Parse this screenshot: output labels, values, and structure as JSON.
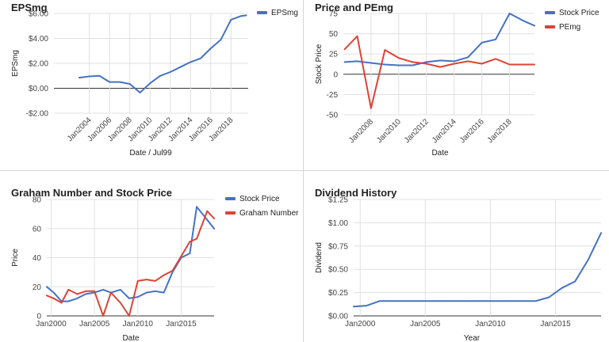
{
  "colors": {
    "blue": "#4472c4",
    "red": "#db4437",
    "grid": "#e0e0e0",
    "zero": "#333333"
  },
  "chart_data": [
    {
      "type": "line",
      "title": "EPSmg",
      "xlabel": "Date / Jul99",
      "ylabel": "EPSmg",
      "xlim": [
        2000.5,
        2019.7
      ],
      "ylim": [
        -2,
        6
      ],
      "y_ticks": [
        -2,
        0,
        2,
        4,
        6
      ],
      "y_tick_labels": [
        "-$2.00",
        "$0.00",
        "$2.00",
        "$4.00",
        "$6.00"
      ],
      "x_ticks": [
        2004,
        2006,
        2008,
        2010,
        2012,
        2014,
        2016,
        2018
      ],
      "x_tick_labels": [
        "Jan2004",
        "Jan2006",
        "Jan2008",
        "Jan2010",
        "Jan2012",
        "Jan2014",
        "Jan2016",
        "Jan2018"
      ],
      "x_tick_rotate": -45,
      "legend": "top-right",
      "series": [
        {
          "name": "EPSmg",
          "color": "#4472c4",
          "x": [
            2003.0,
            2004.0,
            2005.0,
            2006.0,
            2007.0,
            2008.0,
            2009.0,
            2010.0,
            2011.0,
            2012.0,
            2013.0,
            2014.0,
            2015.0,
            2016.0,
            2017.0,
            2018.0,
            2019.0,
            2019.5
          ],
          "y": [
            0.85,
            0.95,
            1.0,
            0.5,
            0.5,
            0.35,
            -0.35,
            0.4,
            1.0,
            1.3,
            1.7,
            2.1,
            2.4,
            3.2,
            3.9,
            5.5,
            5.8,
            5.85
          ]
        }
      ]
    },
    {
      "type": "line",
      "title": "Price and PEmg",
      "xlabel": "Date",
      "ylabel": "Stock Price",
      "xlim": [
        2006.0,
        2019.8
      ],
      "ylim": [
        -50,
        75
      ],
      "y_ticks": [
        -50,
        -25,
        0,
        25,
        50,
        75
      ],
      "y_tick_labels": [
        "-50",
        "-25",
        "0",
        "25",
        "50",
        "75"
      ],
      "x_ticks": [
        2008,
        2010,
        2012,
        2014,
        2016,
        2018
      ],
      "x_tick_labels": [
        "Jan2008",
        "Jan2010",
        "Jan2012",
        "Jan2014",
        "Jan2016",
        "Jan2018"
      ],
      "x_tick_rotate": -45,
      "legend": "top-right",
      "series": [
        {
          "name": "Stock Price",
          "color": "#4472c4",
          "x": [
            2006.1,
            2007.0,
            2008.0,
            2009.0,
            2010.0,
            2011.0,
            2012.0,
            2013.0,
            2014.0,
            2015.0,
            2016.0,
            2017.0,
            2018.0,
            2019.0,
            2019.8
          ],
          "y": [
            15,
            16,
            14,
            12,
            11,
            11,
            15,
            17,
            16,
            21,
            39,
            43,
            75,
            66,
            60
          ]
        },
        {
          "name": "PEmg",
          "color": "#db4437",
          "x": [
            2006.1,
            2007.0,
            2008.0,
            2009.0,
            2010.0,
            2011.0,
            2012.0,
            2013.0,
            2014.0,
            2015.0,
            2016.0,
            2017.0,
            2018.0,
            2019.0,
            2019.8
          ],
          "y": [
            31,
            47,
            -42,
            30,
            20,
            15,
            13,
            9,
            13,
            16,
            13,
            19,
            12,
            12,
            12
          ]
        }
      ]
    },
    {
      "type": "line",
      "title": "Graham Number and Stock Price",
      "xlabel": "Date",
      "ylabel": "Price",
      "xlim": [
        1999.5,
        2018.8
      ],
      "ylim": [
        0,
        80
      ],
      "y_ticks": [
        0,
        20,
        40,
        60,
        80
      ],
      "y_tick_labels": [
        "0",
        "20",
        "40",
        "60",
        "80"
      ],
      "x_ticks": [
        2000,
        2005,
        2010,
        2015
      ],
      "x_tick_labels": [
        "Jan2000",
        "Jan2005",
        "Jan2010",
        "Jan2015"
      ],
      "x_tick_rotate": 0,
      "legend": "top-right",
      "series": [
        {
          "name": "Stock Price",
          "color": "#4472c4",
          "x": [
            1999.5,
            2000.3,
            2001.2,
            2002.0,
            2003.0,
            2004.0,
            2005.0,
            2006.0,
            2006.9,
            2008.0,
            2009.0,
            2010.0,
            2011.0,
            2012.0,
            2013.0,
            2014.0,
            2015.0,
            2016.0,
            2016.8,
            2018.0,
            2018.8
          ],
          "y": [
            20,
            16,
            10,
            10,
            12,
            15,
            16,
            18,
            16,
            18,
            12,
            13,
            16,
            17,
            16,
            30,
            40,
            43,
            75,
            66,
            60
          ]
        },
        {
          "name": "Graham Number",
          "color": "#db4437",
          "x": [
            1999.5,
            2000.3,
            2001.2,
            2002.0,
            2003.0,
            2004.0,
            2005.0,
            2006.0,
            2006.9,
            2008.0,
            2009.0,
            2010.0,
            2011.0,
            2012.0,
            2013.0,
            2014.0,
            2015.0,
            2016.0,
            2016.8,
            2018.0,
            2018.8
          ],
          "y": [
            14,
            12,
            9,
            18,
            15,
            17,
            17,
            0,
            16,
            9,
            0,
            24,
            25,
            24,
            28,
            31,
            41,
            51,
            53,
            72,
            67
          ]
        }
      ]
    },
    {
      "type": "line",
      "title": "Dividend History",
      "xlabel": "Year",
      "ylabel": "Dividend",
      "xlim": [
        1999.5,
        2018.5
      ],
      "ylim": [
        0,
        1.25
      ],
      "y_ticks": [
        0,
        0.25,
        0.5,
        0.75,
        1.0,
        1.25
      ],
      "y_tick_labels": [
        "$0.00",
        "$0.25",
        "$0.50",
        "$0.75",
        "$1.00",
        "$1.25"
      ],
      "x_ticks": [
        2000,
        2005,
        2010,
        2015
      ],
      "x_tick_labels": [
        "Jan2000",
        "Jan2005",
        "Jan2010",
        "Jan2015"
      ],
      "x_tick_rotate": 0,
      "legend": "none",
      "series": [
        {
          "name": "Dividend",
          "color": "#4472c4",
          "x": [
            1999.5,
            2000.5,
            2001.5,
            2002.5,
            2003.5,
            2004.5,
            2005.5,
            2006.5,
            2007.5,
            2008.5,
            2009.5,
            2010.5,
            2011.5,
            2012.5,
            2013.5,
            2014.5,
            2015.5,
            2016.5,
            2017.5,
            2018.5
          ],
          "y": [
            0.1,
            0.11,
            0.16,
            0.16,
            0.16,
            0.16,
            0.16,
            0.16,
            0.16,
            0.16,
            0.16,
            0.16,
            0.16,
            0.16,
            0.16,
            0.2,
            0.3,
            0.37,
            0.6,
            0.89
          ]
        }
      ]
    }
  ]
}
